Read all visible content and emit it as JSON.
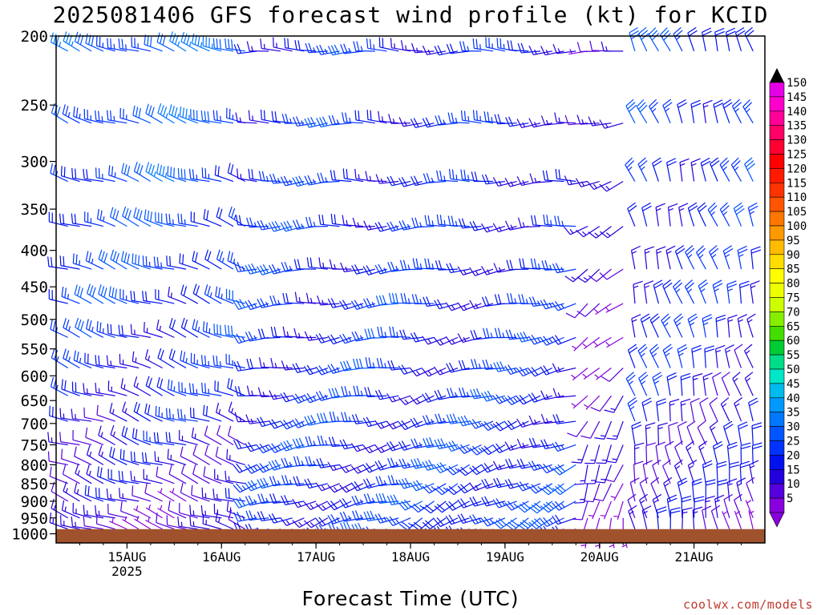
{
  "title": "2025081406 GFS forecast wind profile (kt) for KCID",
  "xlabel": "Forecast Time (UTC)",
  "credit": "coolwx.com/models",
  "chart_data": {
    "type": "wind_barbs",
    "units": "kt",
    "y_axis": {
      "label": "",
      "scale": "log",
      "reversed": true,
      "range": [
        200,
        1030
      ],
      "ticks": [
        200,
        250,
        300,
        350,
        400,
        450,
        500,
        550,
        600,
        650,
        700,
        750,
        800,
        850,
        900,
        950,
        1000
      ]
    },
    "x_axis": {
      "range": [
        "2025-08-14T06",
        "2025-08-21T18"
      ],
      "ticks": [
        {
          "label": "15AUG",
          "sublabel": "2025",
          "time": "2025-08-15T00"
        },
        {
          "label": "16AUG",
          "sublabel": "",
          "time": "2025-08-16T00"
        },
        {
          "label": "17AUG",
          "sublabel": "",
          "time": "2025-08-17T00"
        },
        {
          "label": "18AUG",
          "sublabel": "",
          "time": "2025-08-18T00"
        },
        {
          "label": "19AUG",
          "sublabel": "",
          "time": "2025-08-19T00"
        },
        {
          "label": "20AUG",
          "sublabel": "",
          "time": "2025-08-20T00"
        },
        {
          "label": "21AUG",
          "sublabel": "",
          "time": "2025-08-21T00"
        }
      ]
    },
    "surface_pressure_hPa": 985,
    "colorbar": {
      "labels": [
        150,
        145,
        140,
        135,
        130,
        125,
        120,
        115,
        110,
        105,
        100,
        95,
        90,
        85,
        80,
        75,
        70,
        65,
        60,
        55,
        50,
        45,
        40,
        35,
        30,
        25,
        20,
        15,
        10,
        5
      ],
      "colors": [
        "#e600e6",
        "#ff00cc",
        "#ff0099",
        "#ff0066",
        "#ff0033",
        "#ff0000",
        "#ff1a00",
        "#ff3300",
        "#ff5500",
        "#ff7700",
        "#ff9900",
        "#ffbb00",
        "#ffdd00",
        "#ffff00",
        "#eeff00",
        "#ccff00",
        "#88ee00",
        "#44dd00",
        "#00cc33",
        "#00dd88",
        "#00e6c8",
        "#00bbee",
        "#0099ff",
        "#0077ff",
        "#0055ff",
        "#0033ff",
        "#0011ee",
        "#2200dd",
        "#5500dd",
        "#8800dd"
      ],
      "top_triangle": "#000000",
      "bottom_triangle": "#8800dd"
    },
    "levels_hPa": [
      210,
      265,
      320,
      370,
      425,
      475,
      530,
      585,
      640,
      695,
      750,
      800,
      850,
      900,
      950,
      985
    ],
    "regimes": [
      {
        "start": "2025-08-14T06",
        "end": "2025-08-16T06",
        "upper_dir": 290,
        "upper_speed": 30,
        "lower_dir": 290,
        "lower_speed": 10
      },
      {
        "start": "2025-08-16T06",
        "end": "2025-08-18T00",
        "upper_dir": 270,
        "upper_speed": 22,
        "lower_dir": 250,
        "lower_speed": 22
      },
      {
        "start": "2025-08-18T00",
        "end": "2025-08-19T18",
        "upper_dir": 270,
        "upper_speed": 20,
        "lower_dir": 240,
        "lower_speed": 24
      },
      {
        "start": "2025-08-19T18",
        "end": "2025-08-20T06",
        "upper_dir": 260,
        "upper_speed": 12,
        "lower_dir": 180,
        "lower_speed": 8
      },
      {
        "start": "2025-08-20T06",
        "end": "2025-08-21T18",
        "upper_dir": 340,
        "upper_speed": 24,
        "lower_dir": 350,
        "lower_speed": 12
      }
    ]
  }
}
